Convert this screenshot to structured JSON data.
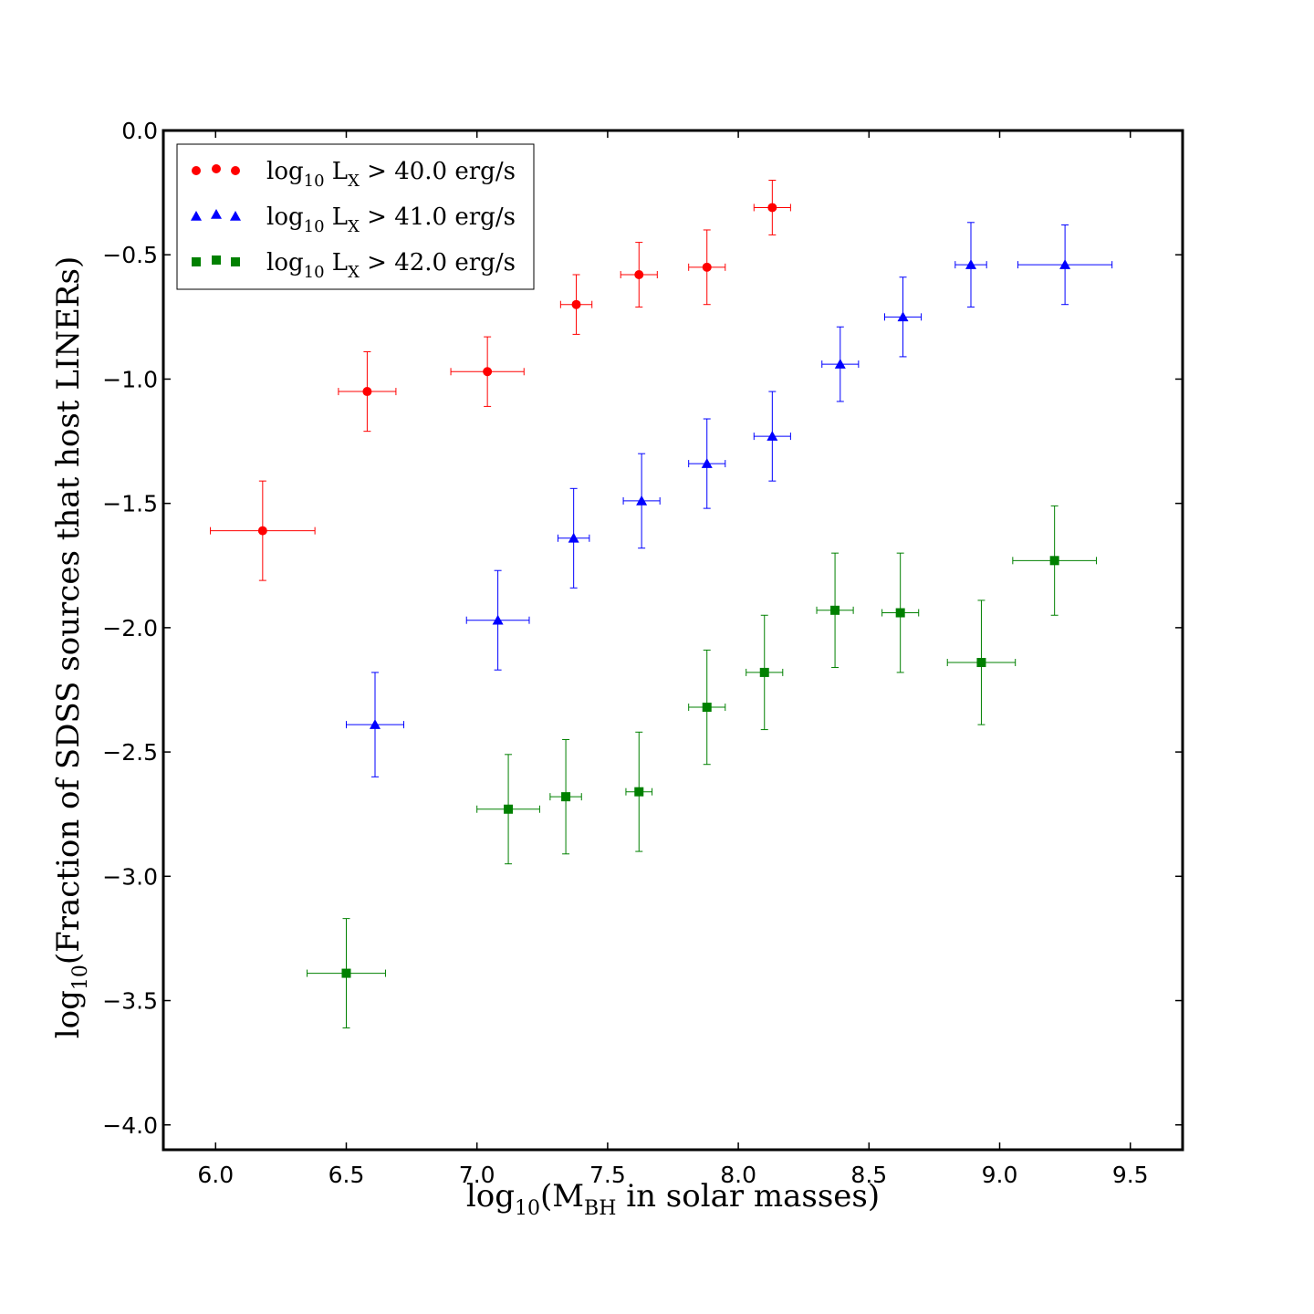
{
  "chart_data": {
    "type": "scatter",
    "title": "",
    "xlabel": {
      "prefix": "log",
      "sub": "10",
      "open": "(M",
      "msub": "BH",
      "rest": " in solar masses)"
    },
    "ylabel": {
      "prefix": "log",
      "sub": "10",
      "rest": "(Fraction of SDSS sources that host LINERs)"
    },
    "xlim": [
      5.8,
      9.7
    ],
    "ylim": [
      -4.1,
      0.0
    ],
    "xticks": [
      6.0,
      6.5,
      7.0,
      7.5,
      8.0,
      8.5,
      9.0,
      9.5
    ],
    "xtick_labels": [
      "6.0",
      "6.5",
      "7.0",
      "7.5",
      "8.0",
      "8.5",
      "9.0",
      "9.5"
    ],
    "yticks": [
      0.0,
      -0.5,
      -1.0,
      -1.5,
      -2.0,
      -2.5,
      -3.0,
      -3.5,
      -4.0
    ],
    "ytick_labels": [
      "0.0",
      "−0.5",
      "−1.0",
      "−1.5",
      "−2.0",
      "−2.5",
      "−3.0",
      "−3.5",
      "−4.0"
    ],
    "grid": false,
    "legend_position": "top-left",
    "series": [
      {
        "name": "log10 LX > 40.0 erg/s",
        "legend": {
          "pre": "log",
          "sub": "10",
          "mid": " L",
          "xsub": "X",
          "post": " > 40.0 erg/s"
        },
        "color": "#ff0000",
        "marker": "circle",
        "points": [
          {
            "x": 6.18,
            "y": -1.61,
            "xerr": 0.2,
            "yerr": 0.2
          },
          {
            "x": 6.58,
            "y": -1.05,
            "xerr": 0.11,
            "yerr": 0.16
          },
          {
            "x": 7.04,
            "y": -0.97,
            "xerr": 0.14,
            "yerr": 0.14
          },
          {
            "x": 7.38,
            "y": -0.7,
            "xerr": 0.06,
            "yerr": 0.12
          },
          {
            "x": 7.62,
            "y": -0.58,
            "xerr": 0.07,
            "yerr": 0.13
          },
          {
            "x": 7.88,
            "y": -0.55,
            "xerr": 0.07,
            "yerr": 0.15
          },
          {
            "x": 8.13,
            "y": -0.31,
            "xerr": 0.07,
            "yerr": 0.11
          }
        ]
      },
      {
        "name": "log10 LX > 41.0 erg/s",
        "legend": {
          "pre": "log",
          "sub": "10",
          "mid": " L",
          "xsub": "X",
          "post": " > 41.0 erg/s"
        },
        "color": "#0000ff",
        "marker": "triangle",
        "points": [
          {
            "x": 6.61,
            "y": -2.39,
            "xerr": 0.11,
            "yerr": 0.21
          },
          {
            "x": 7.08,
            "y": -1.97,
            "xerr": 0.12,
            "yerr": 0.2
          },
          {
            "x": 7.37,
            "y": -1.64,
            "xerr": 0.06,
            "yerr": 0.2
          },
          {
            "x": 7.63,
            "y": -1.49,
            "xerr": 0.07,
            "yerr": 0.19
          },
          {
            "x": 7.88,
            "y": -1.34,
            "xerr": 0.07,
            "yerr": 0.18
          },
          {
            "x": 8.13,
            "y": -1.23,
            "xerr": 0.07,
            "yerr": 0.18
          },
          {
            "x": 8.39,
            "y": -0.94,
            "xerr": 0.07,
            "yerr": 0.15
          },
          {
            "x": 8.63,
            "y": -0.75,
            "xerr": 0.07,
            "yerr": 0.16
          },
          {
            "x": 8.89,
            "y": -0.54,
            "xerr": 0.06,
            "yerr": 0.17
          },
          {
            "x": 9.25,
            "y": -0.54,
            "xerr": 0.18,
            "yerr": 0.16
          }
        ]
      },
      {
        "name": "log10 LX > 42.0 erg/s",
        "legend": {
          "pre": "log",
          "sub": "10",
          "mid": " L",
          "xsub": "X",
          "post": " > 42.0 erg/s"
        },
        "color": "#008000",
        "marker": "square",
        "points": [
          {
            "x": 6.5,
            "y": -3.39,
            "xerr": 0.15,
            "yerr": 0.22
          },
          {
            "x": 7.12,
            "y": -2.73,
            "xerr": 0.12,
            "yerr": 0.22
          },
          {
            "x": 7.34,
            "y": -2.68,
            "xerr": 0.06,
            "yerr": 0.23
          },
          {
            "x": 7.62,
            "y": -2.66,
            "xerr": 0.05,
            "yerr": 0.24
          },
          {
            "x": 7.88,
            "y": -2.32,
            "xerr": 0.07,
            "yerr": 0.23
          },
          {
            "x": 8.1,
            "y": -2.18,
            "xerr": 0.07,
            "yerr": 0.23
          },
          {
            "x": 8.37,
            "y": -1.93,
            "xerr": 0.07,
            "yerr": 0.23
          },
          {
            "x": 8.62,
            "y": -1.94,
            "xerr": 0.07,
            "yerr": 0.24
          },
          {
            "x": 8.93,
            "y": -2.14,
            "xerr": 0.13,
            "yerr": 0.25
          },
          {
            "x": 9.21,
            "y": -1.73,
            "xerr": 0.16,
            "yerr": 0.22
          }
        ]
      }
    ]
  }
}
